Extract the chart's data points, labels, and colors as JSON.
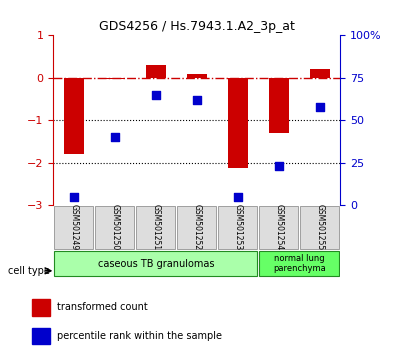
{
  "title": "GDS4256 / Hs.7943.1.A2_3p_at",
  "samples": [
    "GSM501249",
    "GSM501250",
    "GSM501251",
    "GSM501252",
    "GSM501253",
    "GSM501254",
    "GSM501255"
  ],
  "red_bars": [
    -1.8,
    -0.02,
    0.3,
    0.1,
    -2.12,
    -1.3,
    0.2
  ],
  "blue_dots": [
    5,
    40,
    65,
    62,
    5,
    23,
    58
  ],
  "ylim_left": [
    -3,
    1
  ],
  "ylim_right": [
    0,
    100
  ],
  "yticks_left": [
    -3,
    -2,
    -1,
    0,
    1
  ],
  "yticks_right": [
    0,
    25,
    50,
    75,
    100
  ],
  "yticklabels_right": [
    "0",
    "25",
    "50",
    "75",
    "100%"
  ],
  "group1_label": "caseous TB granulomas",
  "group1_indices": [
    0,
    1,
    2,
    3,
    4
  ],
  "group2_label": "normal lung\nparenchyma",
  "group2_indices": [
    5,
    6
  ],
  "cell_type_label": "cell type",
  "legend_red": "transformed count",
  "legend_blue": "percentile rank within the sample",
  "bar_color": "#CC0000",
  "dot_color": "#0000CC",
  "group1_color": "#AAFFAA",
  "group2_color": "#66FF66",
  "refline_color": "#CC0000",
  "bar_width": 0.5,
  "dot_size": 40
}
